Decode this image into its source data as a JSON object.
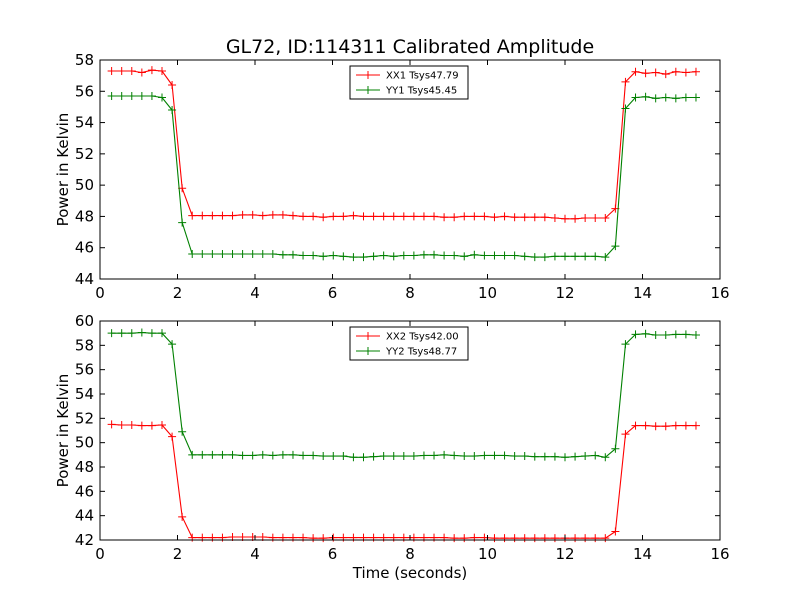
{
  "title": "GL72, ID:114311 Calibrated Amplitude",
  "xlabel": "Time (seconds)",
  "colors": {
    "red": "#ff0000",
    "green": "#008000"
  },
  "chart_data": [
    {
      "type": "line",
      "ylabel": "Power in Kelvin",
      "xlim": [
        0,
        16
      ],
      "ylim": [
        44,
        58
      ],
      "xticks": [
        0,
        2,
        4,
        6,
        8,
        10,
        12,
        14,
        16
      ],
      "yticks": [
        44,
        46,
        48,
        50,
        52,
        54,
        56,
        58
      ],
      "grid": false,
      "legend_position": "top-center",
      "x": [
        0.3,
        0.56,
        0.82,
        1.08,
        1.34,
        1.6,
        1.86,
        2.12,
        2.38,
        2.64,
        2.9,
        3.16,
        3.42,
        3.68,
        3.94,
        4.2,
        4.46,
        4.72,
        4.98,
        5.24,
        5.5,
        5.76,
        6.02,
        6.28,
        6.54,
        6.8,
        7.06,
        7.32,
        7.58,
        7.84,
        8.1,
        8.36,
        8.62,
        8.88,
        9.14,
        9.4,
        9.66,
        9.92,
        10.18,
        10.44,
        10.7,
        10.96,
        11.22,
        11.48,
        11.74,
        12.0,
        12.26,
        12.52,
        12.78,
        13.04,
        13.3,
        13.56,
        13.82,
        14.08,
        14.34,
        14.6,
        14.86,
        15.12,
        15.38
      ],
      "series": [
        {
          "name": "XX1 Tsys47.79",
          "color": "#ff0000",
          "values": [
            57.3,
            57.3,
            57.3,
            57.2,
            57.35,
            57.3,
            56.4,
            49.8,
            48.05,
            48.05,
            48.05,
            48.05,
            48.05,
            48.1,
            48.1,
            48.05,
            48.1,
            48.1,
            48.05,
            48.0,
            48.0,
            47.95,
            48.0,
            48.0,
            48.05,
            48.0,
            48.0,
            48.0,
            48.0,
            48.0,
            48.0,
            48.0,
            48.0,
            47.95,
            47.95,
            48.0,
            48.0,
            48.0,
            47.95,
            48.0,
            47.95,
            47.95,
            47.95,
            47.95,
            47.9,
            47.85,
            47.85,
            47.9,
            47.9,
            47.9,
            48.5,
            56.6,
            57.25,
            57.15,
            57.2,
            57.1,
            57.25,
            57.2,
            57.25
          ]
        },
        {
          "name": "YY1 Tsys45.45",
          "color": "#008000",
          "values": [
            55.7,
            55.7,
            55.7,
            55.7,
            55.7,
            55.6,
            54.8,
            47.6,
            45.6,
            45.6,
            45.6,
            45.6,
            45.6,
            45.6,
            45.6,
            45.6,
            45.6,
            45.55,
            45.55,
            45.5,
            45.5,
            45.45,
            45.5,
            45.45,
            45.4,
            45.4,
            45.45,
            45.5,
            45.45,
            45.5,
            45.5,
            45.55,
            45.55,
            45.5,
            45.5,
            45.45,
            45.55,
            45.5,
            45.5,
            45.5,
            45.5,
            45.45,
            45.4,
            45.4,
            45.45,
            45.45,
            45.45,
            45.45,
            45.45,
            45.4,
            46.1,
            54.9,
            55.6,
            55.65,
            55.55,
            55.6,
            55.55,
            55.6,
            55.6
          ]
        }
      ]
    },
    {
      "type": "line",
      "ylabel": "Power in Kelvin",
      "xlabel": "Time (seconds)",
      "xlim": [
        0,
        16
      ],
      "ylim": [
        42,
        60
      ],
      "xticks": [
        0,
        2,
        4,
        6,
        8,
        10,
        12,
        14,
        16
      ],
      "yticks": [
        42,
        44,
        46,
        48,
        50,
        52,
        54,
        56,
        58,
        60
      ],
      "grid": false,
      "legend_position": "top-center",
      "x": [
        0.3,
        0.56,
        0.82,
        1.08,
        1.34,
        1.6,
        1.86,
        2.12,
        2.38,
        2.64,
        2.9,
        3.16,
        3.42,
        3.68,
        3.94,
        4.2,
        4.46,
        4.72,
        4.98,
        5.24,
        5.5,
        5.76,
        6.02,
        6.28,
        6.54,
        6.8,
        7.06,
        7.32,
        7.58,
        7.84,
        8.1,
        8.36,
        8.62,
        8.88,
        9.14,
        9.4,
        9.66,
        9.92,
        10.18,
        10.44,
        10.7,
        10.96,
        11.22,
        11.48,
        11.74,
        12.0,
        12.26,
        12.52,
        12.78,
        13.04,
        13.3,
        13.56,
        13.82,
        14.08,
        14.34,
        14.6,
        14.86,
        15.12,
        15.38
      ],
      "series": [
        {
          "name": "XX2 Tsys42.00",
          "color": "#ff0000",
          "values": [
            51.5,
            51.45,
            51.45,
            51.4,
            51.4,
            51.45,
            50.5,
            43.9,
            42.2,
            42.2,
            42.2,
            42.2,
            42.25,
            42.25,
            42.25,
            42.25,
            42.2,
            42.2,
            42.2,
            42.2,
            42.15,
            42.15,
            42.2,
            42.2,
            42.2,
            42.2,
            42.2,
            42.2,
            42.2,
            42.2,
            42.2,
            42.2,
            42.2,
            42.2,
            42.15,
            42.15,
            42.2,
            42.2,
            42.15,
            42.15,
            42.15,
            42.15,
            42.15,
            42.15,
            42.15,
            42.15,
            42.15,
            42.15,
            42.15,
            42.15,
            42.7,
            50.7,
            51.4,
            51.4,
            51.35,
            51.35,
            51.4,
            51.4,
            51.4
          ]
        },
        {
          "name": "YY2 Tsys48.77",
          "color": "#008000",
          "values": [
            59.0,
            59.0,
            59.0,
            59.05,
            59.0,
            59.0,
            58.1,
            50.9,
            49.0,
            49.0,
            49.0,
            49.0,
            49.0,
            48.95,
            48.95,
            49.0,
            48.95,
            49.0,
            49.0,
            48.95,
            48.95,
            48.9,
            48.9,
            48.9,
            48.8,
            48.8,
            48.85,
            48.9,
            48.9,
            48.9,
            48.9,
            48.95,
            48.95,
            49.0,
            48.95,
            48.9,
            48.9,
            48.95,
            48.95,
            48.95,
            48.9,
            48.9,
            48.85,
            48.85,
            48.85,
            48.8,
            48.85,
            48.9,
            48.95,
            48.8,
            49.5,
            58.1,
            58.9,
            58.95,
            58.85,
            58.85,
            58.9,
            58.9,
            58.85
          ]
        }
      ]
    }
  ]
}
